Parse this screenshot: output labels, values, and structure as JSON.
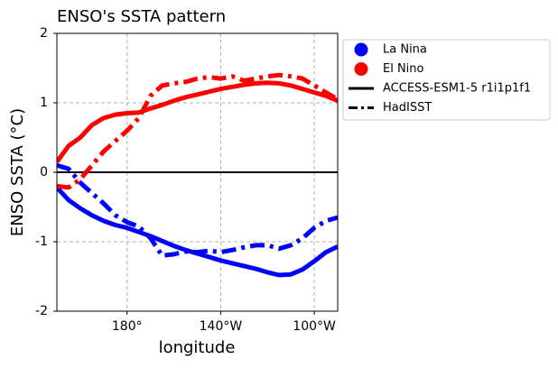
{
  "chart_data": {
    "type": "line",
    "title": "ENSO's SSTA pattern",
    "xlabel": "longitude",
    "ylabel": "ENSO SSTA (°C)",
    "x": [
      150,
      155,
      160,
      165,
      170,
      175,
      180,
      185,
      190,
      195,
      200,
      205,
      210,
      215,
      220,
      225,
      230,
      235,
      240,
      245,
      250,
      255,
      260,
      265,
      270
    ],
    "series": [
      {
        "color": "#0000ff",
        "linestyle": "solid",
        "values": [
          -0.22,
          -0.4,
          -0.52,
          -0.62,
          -0.7,
          -0.76,
          -0.8,
          -0.86,
          -0.92,
          -0.99,
          -1.06,
          -1.12,
          -1.17,
          -1.22,
          -1.27,
          -1.31,
          -1.35,
          -1.39,
          -1.44,
          -1.48,
          -1.47,
          -1.4,
          -1.28,
          -1.15,
          -1.07
        ]
      },
      {
        "color": "#0000ff",
        "linestyle": "dashdot",
        "values": [
          0.1,
          0.05,
          -0.15,
          -0.3,
          -0.45,
          -0.62,
          -0.72,
          -0.78,
          -0.95,
          -1.2,
          -1.18,
          -1.14,
          -1.15,
          -1.13,
          -1.15,
          -1.12,
          -1.08,
          -1.05,
          -1.05,
          -1.1,
          -1.05,
          -0.95,
          -0.8,
          -0.7,
          -0.65
        ]
      },
      {
        "color": "#ff0000",
        "linestyle": "solid",
        "values": [
          0.15,
          0.38,
          0.5,
          0.68,
          0.78,
          0.83,
          0.85,
          0.86,
          0.92,
          0.97,
          1.03,
          1.08,
          1.12,
          1.16,
          1.2,
          1.23,
          1.26,
          1.28,
          1.29,
          1.28,
          1.25,
          1.2,
          1.15,
          1.1,
          1.03
        ]
      },
      {
        "color": "#ff0000",
        "linestyle": "dashdot",
        "values": [
          -0.2,
          -0.22,
          -0.1,
          0.1,
          0.3,
          0.45,
          0.6,
          0.78,
          1.1,
          1.25,
          1.28,
          1.3,
          1.35,
          1.37,
          1.35,
          1.38,
          1.32,
          1.35,
          1.38,
          1.4,
          1.38,
          1.35,
          1.25,
          1.15,
          1.05
        ]
      }
    ],
    "xlim": [
      150,
      270
    ],
    "xticks": [
      {
        "value": 180,
        "label": "180°"
      },
      {
        "value": 220,
        "label": "140°W"
      },
      {
        "value": 260,
        "label": "100°W"
      }
    ],
    "ylim": [
      -2,
      2
    ],
    "yticks": [
      -2,
      -1,
      0,
      1,
      2
    ],
    "grid": true,
    "zero_line": true,
    "legend": {
      "loc": "upper left outside",
      "entries": [
        {
          "label": "La Nina",
          "color": "#0000ff",
          "marker": "circle"
        },
        {
          "label": "El Nino",
          "color": "#ff0000",
          "marker": "circle"
        },
        {
          "label": "ACCESS-ESM1-5 r1i1p1f1",
          "color": "#000000",
          "linestyle": "solid"
        },
        {
          "label": "HadISST",
          "color": "#000000",
          "linestyle": "dashdot"
        }
      ]
    }
  }
}
